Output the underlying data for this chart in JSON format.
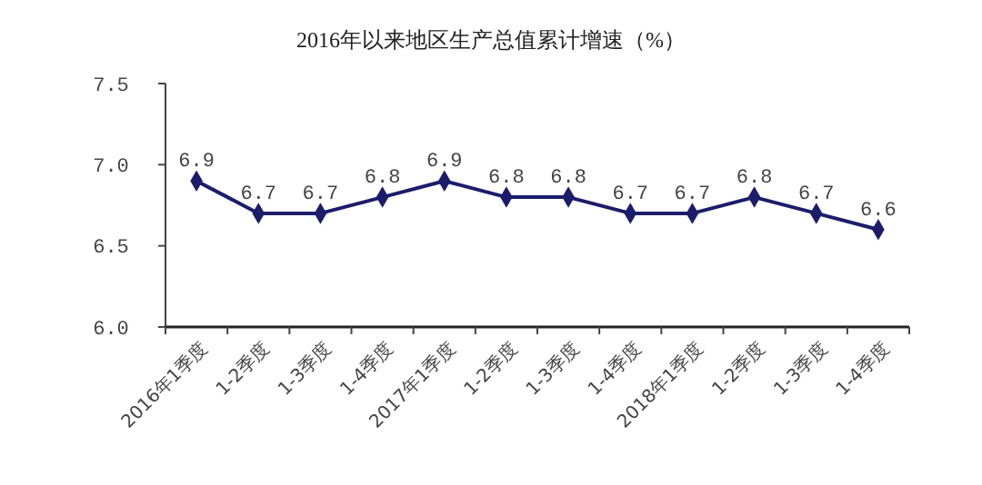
{
  "chart_data": {
    "type": "line",
    "title": "2016年以来地区生产总值累计增速（%）",
    "categories": [
      "2016年1季度",
      "1-2季度",
      "1-3季度",
      "1-4季度",
      "2017年1季度",
      "1-2季度",
      "1-3季度",
      "1-4季度",
      "2018年1季度",
      "1-2季度",
      "1-3季度",
      "1-4季度"
    ],
    "series": [
      {
        "color": "#1c1c6b",
        "values": [
          6.9,
          6.7,
          6.7,
          6.8,
          6.9,
          6.8,
          6.8,
          6.7,
          6.7,
          6.8,
          6.7,
          6.6
        ]
      }
    ],
    "ylim": [
      6.0,
      7.5
    ],
    "yticks": [
      {
        "value": 6.0,
        "label": "6.0"
      },
      {
        "value": 6.5,
        "label": "6.5"
      },
      {
        "value": 7.0,
        "label": "7.0"
      },
      {
        "value": 7.5,
        "label": "7.5"
      }
    ],
    "marker": "diamond",
    "data_labels": true,
    "grid": false
  }
}
